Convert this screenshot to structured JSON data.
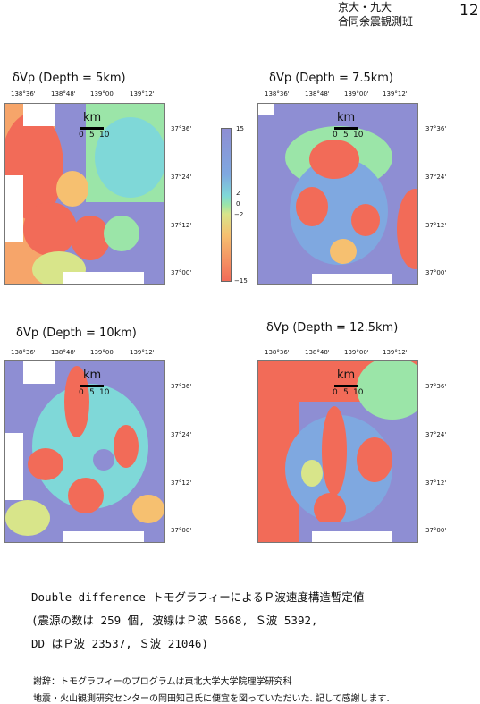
{
  "header": {
    "line1": "京大・九大",
    "line2": "合同余震観測班",
    "page_number": "12"
  },
  "panels": [
    {
      "title": "δVp (Depth = 5km)",
      "lon_ticks": [
        "138°36'",
        "138°48'",
        "139°00'",
        "139°12'"
      ],
      "lat_ticks": [
        "37°36'",
        "37°24'",
        "37°12'",
        "37°00'"
      ],
      "scale_km": "km",
      "scale_ticks": [
        "0",
        "5",
        "10"
      ]
    },
    {
      "title": "δVp (Depth = 7.5km)",
      "lon_ticks": [
        "138°36'",
        "138°48'",
        "139°00'",
        "139°12'"
      ],
      "lat_ticks": [
        "37°36'",
        "37°24'",
        "37°12'",
        "37°00'"
      ],
      "scale_km": "km",
      "scale_ticks": [
        "0",
        "5",
        "10"
      ]
    },
    {
      "title": "δVp (Depth = 10km)",
      "lon_ticks": [
        "138°36'",
        "138°48'",
        "139°00'",
        "139°12'"
      ],
      "lat_ticks": [
        "37°36'",
        "37°24'",
        "37°12'",
        "37°00'"
      ],
      "scale_km": "km",
      "scale_ticks": [
        "0",
        "5",
        "10"
      ]
    },
    {
      "title": "δVp (Depth = 12.5km)",
      "lon_ticks": [
        "138°36'",
        "138°48'",
        "139°00'",
        "139°12'"
      ],
      "lat_ticks": [
        "37°36'",
        "37°24'",
        "37°12'",
        "37°00'"
      ],
      "scale_km": "km",
      "scale_ticks": [
        "0",
        "5",
        "10"
      ]
    }
  ],
  "colorbar": {
    "labels": [
      "15",
      "2",
      "0",
      "−2",
      "−15"
    ],
    "colors": {
      "high": "#8e8ed3",
      "mid": "#9be5a8",
      "low": "#f26b58"
    }
  },
  "caption": {
    "line1": "Double difference トモグラフィーによるＰ波速度構造暫定値",
    "line2": "(震源の数は 259 個, 波線はＰ波 5668, Ｓ波 5392,",
    "line3": "DD はＰ波 23537, Ｓ波 21046)"
  },
  "acknowledgement": {
    "line1": "謝辞：トモグラフィーのプログラムは東北大学大学院理学研究科",
    "line2": "地震・火山観測研究センターの岡田知己氏に便宜を図っていただいた. 記して感謝します."
  }
}
